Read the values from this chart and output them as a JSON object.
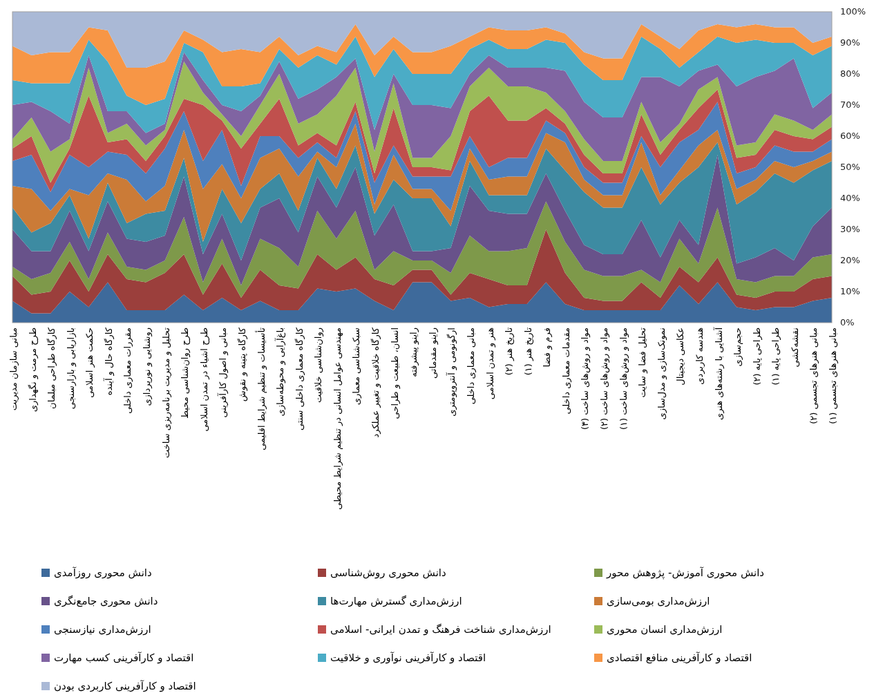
{
  "chart_data": {
    "type": "area",
    "stacked": true,
    "legend": "bottom",
    "grid": false,
    "ylim": [
      0,
      100
    ],
    "yticks": [
      {
        "value": 0,
        "label": "0%"
      },
      {
        "value": 10,
        "label": "10%"
      },
      {
        "value": 20,
        "label": "20%"
      },
      {
        "value": 30,
        "label": "30%"
      },
      {
        "value": 40,
        "label": "40%"
      },
      {
        "value": 50,
        "label": "50%"
      },
      {
        "value": 60,
        "label": "60%"
      },
      {
        "value": 70,
        "label": "70%"
      },
      {
        "value": 80,
        "label": "80%"
      },
      {
        "value": 90,
        "label": "90%"
      },
      {
        "value": 100,
        "label": "100%"
      }
    ],
    "categories": [
      "مبانی سازمان مدیریت",
      "طرح مرمت و نگهداری",
      "کارگاه طراحی مبلمان",
      "بازاریابی و بازارسنجی",
      "حکمت هنر اسلامی",
      "کارگاه حال و آینده",
      "مقررات معماری داخلی",
      "روشنایی و نورپردازی",
      "تحلیل و مدیریت برنامه‌ریزی ساخت",
      "طرح روان‌شناسی محیط",
      "طرح اشیاء در تمدن اسلامی",
      "مبانی و اصول کارآفرینی",
      "کارگاه پتینه و نقوش",
      "تأسیسات و تنظیم شرایط اقلیمی",
      "باغ‌آرایی و محوطه‌سازی",
      "کارگاه معماری داخلی سنتی",
      "روان‌شناسی خلاقیت",
      "مهندسی عوامل انسانی در تنظیم شرایط محیطی",
      "سبک‌شناسی معماری",
      "کارگاه خلاقیت و تغییر عملکرد",
      "انسان، طبیعت و طراحی",
      "راینو پیشرفته",
      "راینو مقدماتی",
      "ارگونومی و آنتروپومتری",
      "مبانی معماری داخلی",
      "هنر و تمدن اسلامی",
      "تاریخ هنر (۲)",
      "تاریخ هنر (۱)",
      "فرم و فضا",
      "مقدمات معماری داخلی",
      "مواد و روش‌های ساخت (۳)",
      "مواد و روش‌های ساخت (۲)",
      "مواد و روش‌های ساخت (۱)",
      "تحلیل فضا و سایت",
      "نمونک‌سازی و مدل‌سازی",
      "عکاسی دیجیتال",
      "هندسه کاربردی",
      "آشنایی با رشته‌های هنری",
      "حجم‌سازی",
      "طراحی پایه (۲)",
      "طراحی پایه (۱)",
      "نقشه‌کشی",
      "مبانی هنرهای تجسمی (۲)",
      "مبانی هنرهای تجسمی (۱)"
    ],
    "series": [
      {
        "name": "دانش محوری روزآمدی",
        "color": "#3e6a9b",
        "values": [
          7,
          3,
          3,
          10,
          5,
          13,
          4,
          4,
          4,
          9,
          4,
          8,
          4,
          7,
          4,
          4,
          11,
          10,
          11,
          7,
          4,
          13,
          13,
          7,
          8,
          5,
          6,
          6,
          13,
          6,
          4,
          4,
          4,
          4,
          4,
          12,
          6,
          13,
          5,
          4,
          5,
          5,
          7,
          8
        ]
      },
      {
        "name": "دانش محوری روش‌شناسی",
        "color": "#9b3f3c",
        "values": [
          8,
          6,
          7,
          10,
          5,
          9,
          10,
          9,
          12,
          13,
          5,
          11,
          4,
          10,
          8,
          7,
          11,
          7,
          10,
          7,
          8,
          4,
          4,
          2,
          8,
          9,
          6,
          6,
          17,
          10,
          4,
          3,
          3,
          9,
          4,
          6,
          7,
          8,
          4,
          4,
          5,
          5,
          7,
          7
        ]
      },
      {
        "name": "دانش محوری آموزش- پژوهش محور",
        "color": "#7e994a",
        "values": [
          3,
          5,
          6,
          6,
          4,
          7,
          4,
          4,
          4,
          12,
          4,
          8,
          4,
          10,
          12,
          7,
          14,
          10,
          15,
          3,
          11,
          3,
          3,
          7,
          12,
          9,
          11,
          12,
          9,
          10,
          9,
          8,
          8,
          4,
          5,
          9,
          6,
          16,
          5,
          5,
          5,
          5,
          7,
          7
        ]
      },
      {
        "name": "دانش محوری جامع‌نگری",
        "color": "#68528a",
        "values": [
          12,
          9,
          7,
          10,
          9,
          10,
          9,
          9,
          8,
          13,
          9,
          8,
          8,
          10,
          16,
          11,
          11,
          10,
          14,
          11,
          15,
          3,
          3,
          8,
          16,
          13,
          12,
          11,
          9,
          10,
          8,
          7,
          7,
          16,
          8,
          6,
          6,
          17,
          5,
          8,
          9,
          5,
          10,
          15
        ]
      },
      {
        "name": "ارزش‌مداری گسترش مهارت‌ها",
        "color": "#3d8ba2",
        "values": [
          7,
          6,
          9,
          5,
          4,
          6,
          5,
          9,
          8,
          6,
          4,
          8,
          12,
          6,
          8,
          7,
          6,
          6,
          7,
          7,
          8,
          17,
          17,
          7,
          8,
          5,
          6,
          6,
          8,
          13,
          17,
          15,
          15,
          17,
          17,
          12,
          25,
          4,
          19,
          21,
          24,
          25,
          18,
          15
        ]
      },
      {
        "name": "ارزش‌مداری بومی‌سازی",
        "color": "#cb7b37",
        "values": [
          7,
          14,
          4,
          2,
          14,
          3,
          14,
          4,
          8,
          9,
          17,
          8,
          8,
          10,
          8,
          11,
          2,
          7,
          7,
          3,
          8,
          3,
          3,
          5,
          4,
          5,
          6,
          6,
          5,
          9,
          4,
          4,
          4,
          8,
          3,
          4,
          7,
          4,
          5,
          4,
          4,
          5,
          3,
          3
        ]
      },
      {
        "name": "ارزش‌مداری نیازسنجی",
        "color": "#4e80bd",
        "values": [
          8,
          11,
          6,
          11,
          9,
          7,
          8,
          9,
          12,
          6,
          9,
          11,
          4,
          7,
          4,
          6,
          3,
          3,
          4,
          7,
          3,
          4,
          4,
          11,
          4,
          4,
          6,
          6,
          4,
          3,
          4,
          4,
          4,
          2,
          9,
          9,
          5,
          9,
          5,
          4,
          5,
          5,
          3,
          4
        ]
      },
      {
        "name": "ارزش‌مداری شناخت فرهنگ و تمدن ایرانی- اسلامی",
        "color": "#c0504d",
        "values": [
          4,
          6,
          3,
          2,
          23,
          3,
          5,
          4,
          4,
          4,
          18,
          3,
          12,
          4,
          12,
          4,
          3,
          4,
          3,
          3,
          12,
          3,
          3,
          2,
          8,
          23,
          12,
          12,
          4,
          3,
          4,
          3,
          3,
          7,
          4,
          4,
          7,
          4,
          5,
          4,
          5,
          5,
          4,
          4
        ]
      },
      {
        "name": "ارزش‌مداری انسان محوری",
        "color": "#9bbb59",
        "values": [
          3,
          6,
          10,
          3,
          9,
          3,
          5,
          5,
          2,
          12,
          4,
          2,
          4,
          6,
          8,
          7,
          6,
          16,
          11,
          7,
          8,
          3,
          3,
          11,
          8,
          9,
          11,
          11,
          5,
          4,
          5,
          4,
          4,
          4,
          4,
          2,
          6,
          4,
          4,
          4,
          5,
          5,
          3,
          4
        ]
      },
      {
        "name": "اقتصاد و کارآفرینی کسب مهارت",
        "color": "#8064a2",
        "values": [
          11,
          5,
          13,
          5,
          4,
          7,
          4,
          4,
          2,
          3,
          4,
          3,
          8,
          3,
          4,
          8,
          8,
          6,
          3,
          7,
          3,
          17,
          17,
          9,
          4,
          4,
          6,
          6,
          8,
          13,
          12,
          14,
          14,
          8,
          21,
          12,
          6,
          4,
          19,
          21,
          14,
          20,
          7,
          7
        ]
      },
      {
        "name": "اقتصاد و کارآفرینی نوآوری و خلاقیت",
        "color": "#4bacc6",
        "values": [
          8,
          6,
          9,
          13,
          5,
          16,
          5,
          9,
          8,
          3,
          9,
          6,
          8,
          4,
          4,
          10,
          11,
          4,
          7,
          17,
          8,
          10,
          10,
          11,
          8,
          5,
          6,
          6,
          9,
          9,
          12,
          12,
          12,
          13,
          9,
          6,
          6,
          9,
          14,
          12,
          9,
          5,
          17,
          15
        ]
      },
      {
        "name": "اقتصاد و کارآفرینی منافع اقتصادی",
        "color": "#f79646",
        "values": [
          11,
          9,
          10,
          10,
          4,
          10,
          9,
          12,
          12,
          4,
          4,
          11,
          12,
          10,
          4,
          4,
          3,
          4,
          4,
          7,
          4,
          7,
          7,
          9,
          4,
          4,
          6,
          6,
          4,
          3,
          4,
          7,
          7,
          4,
          4,
          6,
          7,
          4,
          5,
          5,
          5,
          5,
          4,
          3
        ]
      },
      {
        "name": "اقتصاد و کارآفرینی کاربردی بودن",
        "color": "#aab9d6",
        "values": [
          11,
          14,
          13,
          13,
          5,
          6,
          18,
          18,
          16,
          6,
          9,
          13,
          12,
          13,
          8,
          14,
          11,
          13,
          4,
          14,
          8,
          13,
          13,
          11,
          8,
          5,
          6,
          6,
          5,
          7,
          13,
          15,
          15,
          4,
          8,
          12,
          6,
          4,
          5,
          4,
          5,
          5,
          10,
          8
        ]
      }
    ]
  }
}
